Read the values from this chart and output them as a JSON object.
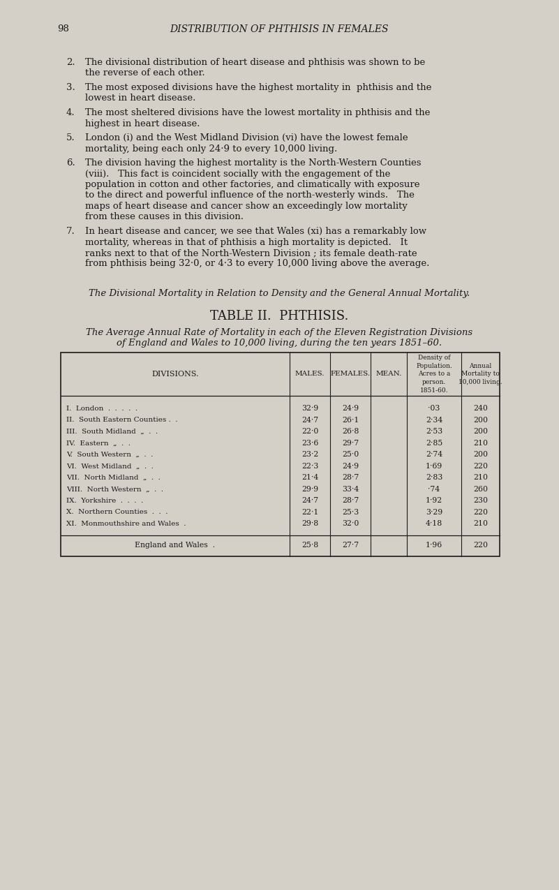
{
  "page_number": "98",
  "page_title": "DISTRIBUTION OF PHTHISIS IN FEMALES",
  "background_color": "#d4d0c8",
  "text_color": "#1a1a1a",
  "body_text_items": [
    {
      "number": "2.",
      "text": "The divisional distribution of heart disease and phthisis was shown to be\n    the reverse of each other."
    },
    {
      "number": "3.",
      "text": "The most exposed divisions have the highest mortality in  phthisis and the\n    lowest in heart disease."
    },
    {
      "number": "4.",
      "text": "The most sheltered divisions have the lowest mortality in phthisis and the\n    highest in heart disease."
    },
    {
      "number": "5.",
      "text": "London (i) and the West Midland Division (vi) have the lowest female\n    mortality, being each only 24·9 to every 10,000 living."
    },
    {
      "number": "6.",
      "text": "The division having the highest mortality is the North-Western Counties\n    (viii).   This fact is coincident socially with the engagement of the\n    population in cotton and other factories, and climatically with exposure\n    to the direct and powerful influence of the north-westerly winds.   The\n    maps of heart disease and cancer show an exceedingly low mortality\n    from these causes in this division."
    },
    {
      "number": "7.",
      "text": "In heart disease and cancer, we see that Wales (xi) has a remarkably low\n    mortality, whereas in that of phthisis a high mortality is depicted.   It\n    ranks next to that of the North-Western Division ; its female death-rate\n    from phthisis being 32·0, or 4·3 to every 10,000 living above the average."
    }
  ],
  "section_italic": "The Divisional Mortality in Relation to Density and the General Annual Mortality.",
  "table_title": "TABLE II.  PHTHISIS.",
  "table_subtitle_line1": "The Average Annual Rate of Mortality in each of the Eleven Registration Divisions",
  "table_subtitle_line2": "of England and Wales to 10,000 living, during the ten years 1851–60.",
  "table_headers_col0": "DIVISIONS.",
  "table_headers_col1": "MALES.",
  "table_headers_col2": "FEMALES.",
  "table_headers_col3": "MEAN.",
  "table_headers_col4": "Density of\nPopulation.\nAcres to a\nperson.\n1851-60.",
  "table_headers_col5": "Annual\nMortality to\n10,000 living.",
  "table_rows": [
    [
      "I.  London  .  .  .  .  .",
      "32·9",
      "24·9",
      "",
      "·03",
      "240"
    ],
    [
      "II.  South Eastern Counties .  .",
      "24·7",
      "26·1",
      "",
      "2·34",
      "200"
    ],
    [
      "III.  South Midland  „  .  .",
      "22·0",
      "26·8",
      "",
      "2·53",
      "200"
    ],
    [
      "IV.  Eastern  „  .  .",
      "23·6",
      "29·7",
      "",
      "2·85",
      "210"
    ],
    [
      "V.  South Western  „  .  .",
      "23·2",
      "25·0",
      "",
      "2·74",
      "200"
    ],
    [
      "VI.  West Midland  „  .  .",
      "22·3",
      "24·9",
      "",
      "1·69",
      "220"
    ],
    [
      "VII.  North Midland  „  .  .",
      "21·4",
      "28·7",
      "",
      "2·83",
      "210"
    ],
    [
      "VIII.  North Western  „  .  .",
      "29·9",
      "33·4",
      "",
      "·74",
      "260"
    ],
    [
      "IX.  Yorkshire  .  .  .  .",
      "24·7",
      "28·7",
      "",
      "1·92",
      "230"
    ],
    [
      "X.  Northern Counties  .  .  .",
      "22·1",
      "25·3",
      "",
      "3·29",
      "220"
    ],
    [
      "XI.  Monmouthshire and Wales  .",
      "29·8",
      "32·0",
      "",
      "4·18",
      "210"
    ]
  ],
  "table_footer": [
    "England and Wales  .",
    "25·8",
    "27·7",
    "",
    "1·96",
    "220"
  ]
}
